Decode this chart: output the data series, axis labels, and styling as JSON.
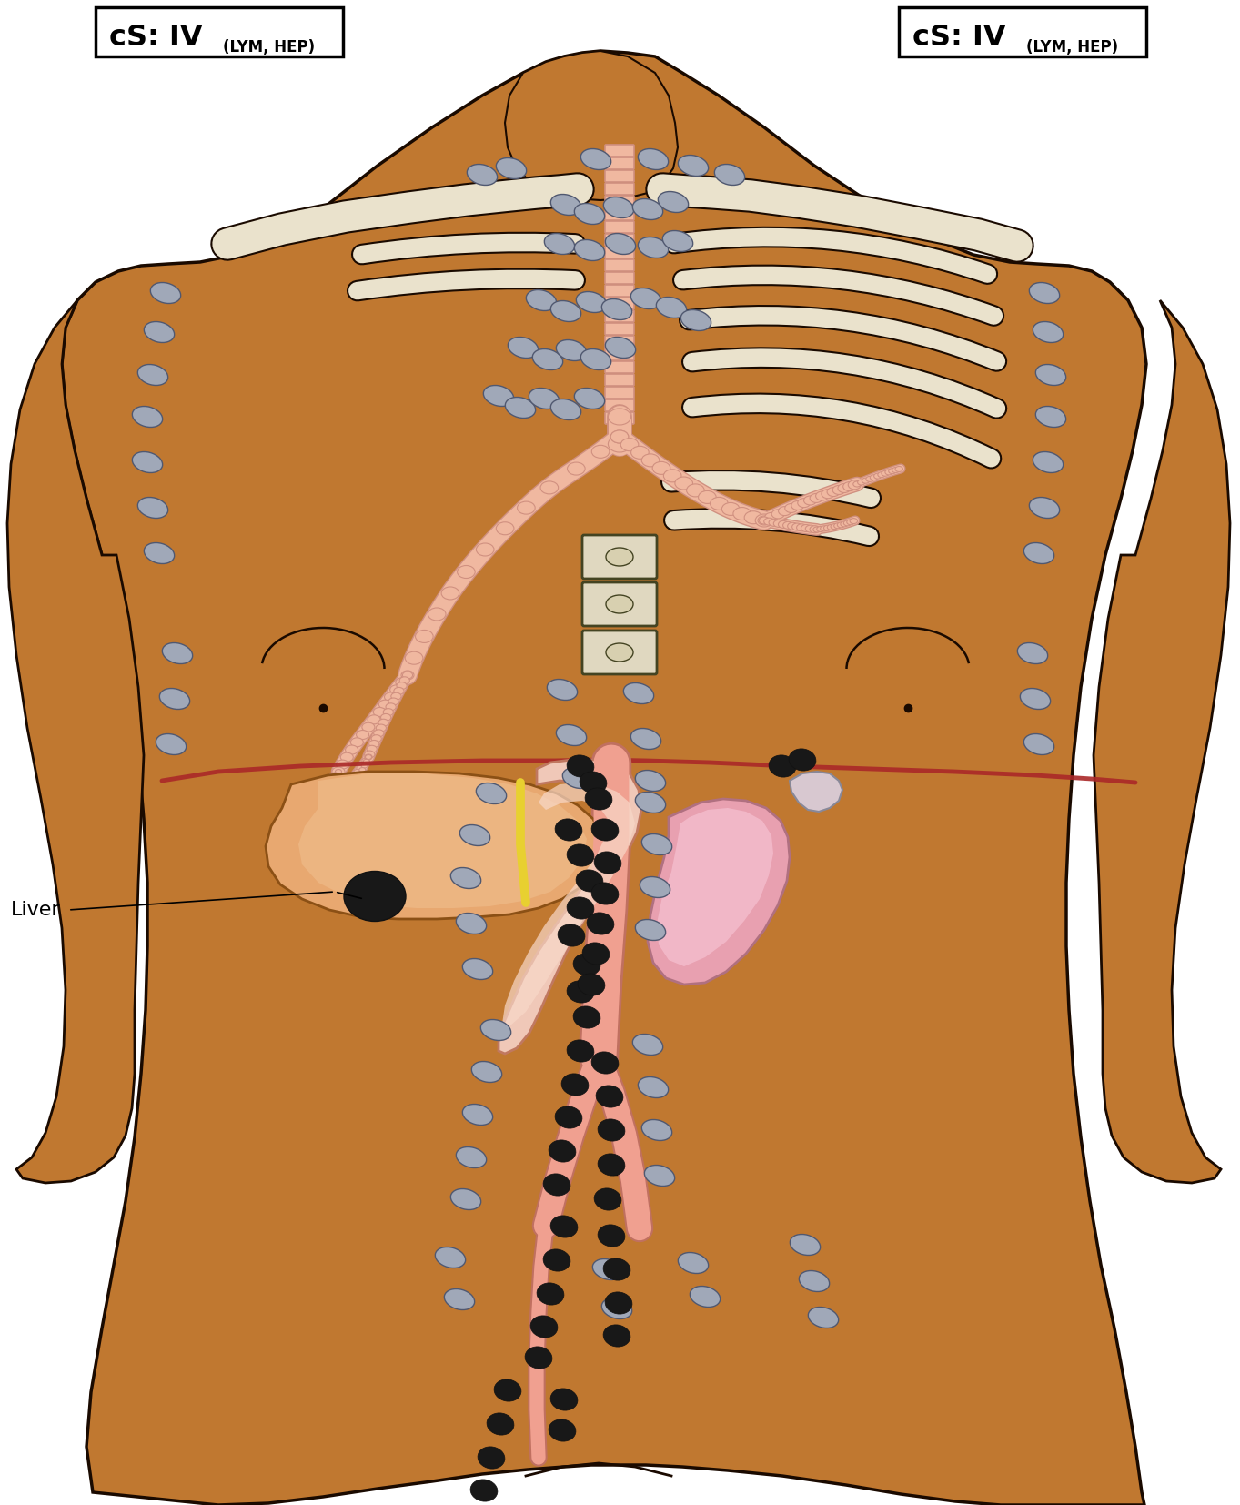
{
  "bg_color": "#FFFFFF",
  "skin_color": "#C07830",
  "bone_color": "#EAE2CC",
  "liver_color": "#E8A870",
  "liver_hi_color": "#F0C090",
  "stomach_color": "#F0C8B8",
  "kidney_color": "#E8A0B0",
  "kidney_hi_color": "#F8C8D8",
  "spleen_color": "#D8C8D0",
  "spleen_hi_color": "#E8D8E0",
  "vessel_color": "#F0A090",
  "vessel_outline": "#C07060",
  "lymph_gray": "#A0A8B8",
  "lymph_black": "#181818",
  "diaphragm_color": "#AA2828",
  "trachea_color": "#F0B8A0",
  "trachea_ring": "#D09080",
  "spine_color": "#E0D8C0",
  "outline_color": "#1A0A00",
  "title_left_main": "cS: IV",
  "title_left_sub": "(LYM, HEP)",
  "title_right_main": "cS: IV",
  "title_right_sub": "(LYM, HEP)",
  "liver_label": "Liver",
  "bile_color": "#E8D030",
  "dark_brown": "#6B3A10"
}
